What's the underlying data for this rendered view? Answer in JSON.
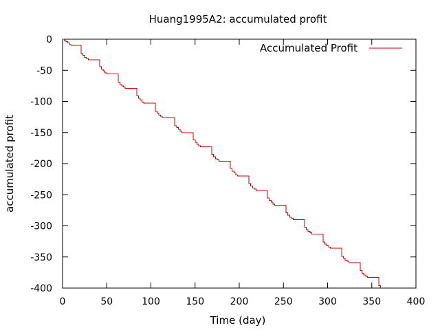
{
  "chart_data": {
    "type": "line",
    "title": "Huang1995A2: accumulated profit",
    "xlabel": "Time (day)",
    "ylabel": "accumulated profit",
    "xlim": [
      0,
      400
    ],
    "ylim": [
      -400,
      0
    ],
    "x_ticks": [
      0,
      50,
      100,
      150,
      200,
      250,
      300,
      350,
      400
    ],
    "y_ticks": [
      0,
      -50,
      -100,
      -150,
      -200,
      -250,
      -300,
      -350,
      -400
    ],
    "grid": false,
    "legend_position": "top-right",
    "series": [
      {
        "name": "Accumulated Profit",
        "color": "#cc0000",
        "points": [
          [
            0,
            0
          ],
          [
            2,
            -2
          ],
          [
            4,
            -4
          ],
          [
            6,
            -6
          ],
          [
            8,
            -9
          ],
          [
            10,
            -10
          ],
          [
            20,
            -10
          ],
          [
            21,
            -23
          ],
          [
            23,
            -26
          ],
          [
            25,
            -29
          ],
          [
            27,
            -31
          ],
          [
            29,
            -33
          ],
          [
            41,
            -33
          ],
          [
            42,
            -44
          ],
          [
            44,
            -48
          ],
          [
            46,
            -51
          ],
          [
            48,
            -54
          ],
          [
            50,
            -56
          ],
          [
            62,
            -56
          ],
          [
            63,
            -69
          ],
          [
            65,
            -73
          ],
          [
            67,
            -75
          ],
          [
            69,
            -77
          ],
          [
            71,
            -79
          ],
          [
            83,
            -79
          ],
          [
            84,
            -91
          ],
          [
            86,
            -95
          ],
          [
            88,
            -98
          ],
          [
            90,
            -101
          ],
          [
            92,
            -103
          ],
          [
            104,
            -103
          ],
          [
            105,
            -116
          ],
          [
            107,
            -119
          ],
          [
            109,
            -122
          ],
          [
            111,
            -124
          ],
          [
            113,
            -126
          ],
          [
            126,
            -126
          ],
          [
            127,
            -139
          ],
          [
            129,
            -142
          ],
          [
            131,
            -145
          ],
          [
            133,
            -148
          ],
          [
            135,
            -150
          ],
          [
            147,
            -150
          ],
          [
            148,
            -162
          ],
          [
            150,
            -166
          ],
          [
            152,
            -169
          ],
          [
            154,
            -171
          ],
          [
            156,
            -173
          ],
          [
            168,
            -173
          ],
          [
            169,
            -185
          ],
          [
            171,
            -189
          ],
          [
            173,
            -192
          ],
          [
            175,
            -194
          ],
          [
            177,
            -196
          ],
          [
            189,
            -196
          ],
          [
            190,
            -208
          ],
          [
            192,
            -212
          ],
          [
            194,
            -215
          ],
          [
            196,
            -218
          ],
          [
            198,
            -220
          ],
          [
            210,
            -220
          ],
          [
            211,
            -232
          ],
          [
            213,
            -236
          ],
          [
            215,
            -239
          ],
          [
            217,
            -241
          ],
          [
            219,
            -243
          ],
          [
            231,
            -243
          ],
          [
            232,
            -255
          ],
          [
            234,
            -259
          ],
          [
            236,
            -262
          ],
          [
            238,
            -265
          ],
          [
            240,
            -267
          ],
          [
            252,
            -267
          ],
          [
            253,
            -279
          ],
          [
            255,
            -283
          ],
          [
            257,
            -286
          ],
          [
            259,
            -288
          ],
          [
            261,
            -290
          ],
          [
            273,
            -290
          ],
          [
            274,
            -302
          ],
          [
            276,
            -306
          ],
          [
            278,
            -309
          ],
          [
            280,
            -311
          ],
          [
            282,
            -313
          ],
          [
            294,
            -313
          ],
          [
            295,
            -326
          ],
          [
            297,
            -329
          ],
          [
            299,
            -332
          ],
          [
            301,
            -334
          ],
          [
            303,
            -336
          ],
          [
            315,
            -336
          ],
          [
            316,
            -349
          ],
          [
            318,
            -352
          ],
          [
            320,
            -355
          ],
          [
            322,
            -357
          ],
          [
            324,
            -359
          ],
          [
            336,
            -359
          ],
          [
            337,
            -372
          ],
          [
            339,
            -376
          ],
          [
            341,
            -379
          ],
          [
            343,
            -381
          ],
          [
            345,
            -383
          ],
          [
            357,
            -383
          ],
          [
            358,
            -396
          ],
          [
            360,
            -400
          ]
        ]
      }
    ]
  }
}
